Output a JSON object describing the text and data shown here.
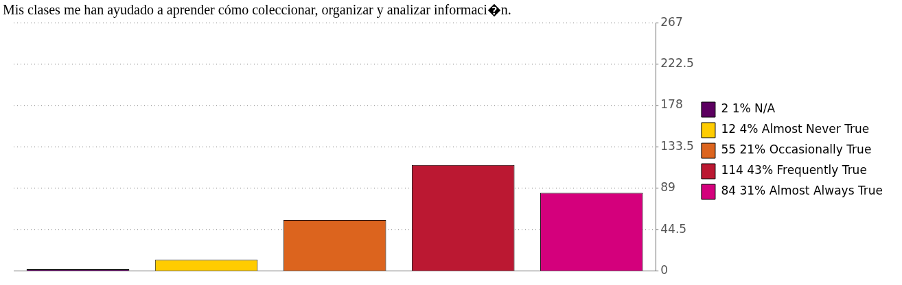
{
  "chart_data": {
    "type": "bar",
    "title": "Mis clases me han ayudado a aprender cómo coleccionar, organizar y analizar informaci�n.",
    "categories": [
      null,
      null,
      null,
      null,
      null
    ],
    "series": [
      {
        "name": "2 1% N/A",
        "color": "#5c0060",
        "values": [
          2,
          null,
          null,
          null,
          null
        ]
      },
      {
        "name": "12 4% Almost Never True",
        "color": "#ffcc00",
        "values": [
          null,
          12,
          null,
          null,
          null
        ]
      },
      {
        "name": "55 21% Occasionally True",
        "color": "#dc641e",
        "values": [
          null,
          null,
          55,
          null,
          null
        ]
      },
      {
        "name": "114 43% Frequently True",
        "color": "#bb1832",
        "values": [
          null,
          null,
          null,
          114,
          null
        ]
      },
      {
        "name": "84 31% Almost Always True",
        "color": "#d4007c",
        "values": [
          null,
          null,
          null,
          null,
          84
        ]
      }
    ],
    "ylim": [
      0,
      267
    ],
    "yticks": [
      0,
      44.5,
      89,
      133.5,
      178,
      222.5,
      267
    ],
    "grid": "y",
    "legend": "right"
  }
}
